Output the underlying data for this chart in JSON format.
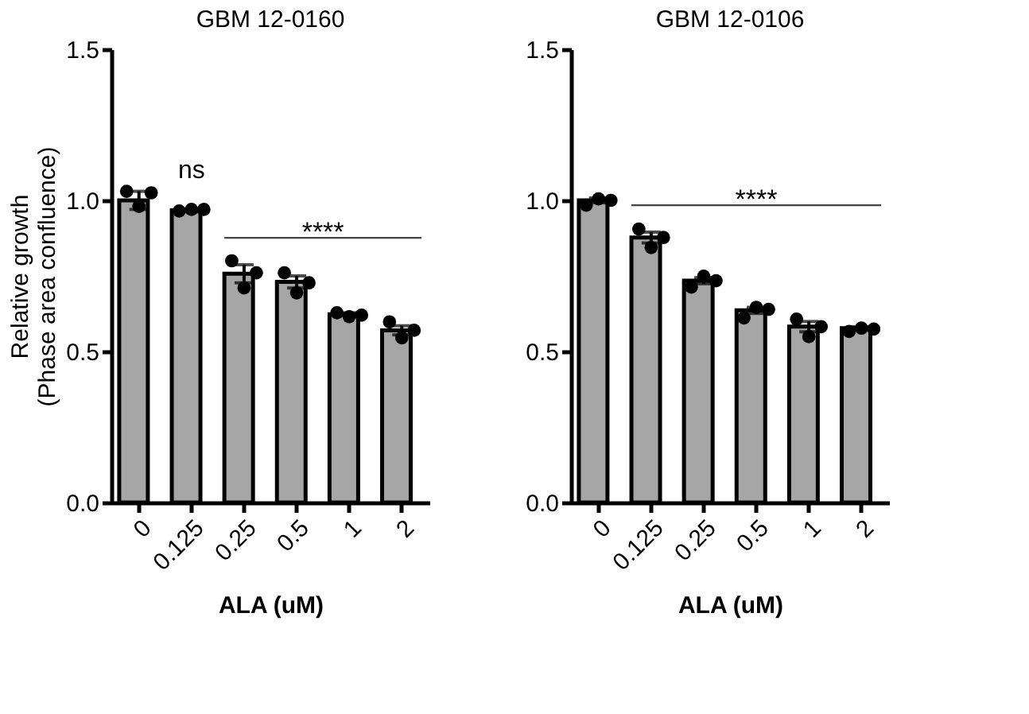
{
  "chart_data": [
    {
      "type": "bar",
      "title": "GBM 12-0160",
      "xlabel": "ALA (uM)",
      "ylabel": "Relative growth\n(Phase area confluence)",
      "categories": [
        "0",
        "0.125",
        "0.25",
        "0.5",
        "1",
        "2"
      ],
      "series": [
        {
          "color": "#a6a6a6",
          "values": [
            1.0,
            0.967,
            0.757,
            0.73,
            0.623,
            0.57
          ],
          "errors": [
            0.03,
            0.005,
            0.03,
            0.02,
            0.005,
            0.015
          ]
        },
        {
          "type": "scatter",
          "color": "#000000",
          "x": [
            "0",
            "0",
            "0",
            "0.125",
            "0.125",
            "0.125",
            "0.25",
            "0.25",
            "0.25",
            "0.5",
            "0.5",
            "0.5",
            "1",
            "1",
            "1",
            "2",
            "2",
            "2"
          ],
          "values": [
            1.03,
            0.98,
            1.025,
            0.965,
            0.97,
            0.97,
            0.8,
            0.71,
            0.76,
            0.76,
            0.694,
            0.727,
            0.628,
            0.615,
            0.62,
            0.598,
            0.545,
            0.57
          ]
        }
      ],
      "ylim": [
        0,
        1.5
      ],
      "yticks": [
        {
          "value": 0,
          "label": "0.0"
        },
        {
          "value": 0.5,
          "label": "0.5"
        },
        {
          "value": 1,
          "label": "1.0"
        },
        {
          "value": 1.5,
          "label": "1.5"
        }
      ],
      "grid": false,
      "annotations": [
        "ns",
        "****"
      ]
    },
    {
      "type": "bar",
      "title": "GBM 12-0106",
      "xlabel": "ALA (uM)",
      "categories": [
        "0",
        "0.125",
        "0.25",
        "0.5",
        "1",
        "2"
      ],
      "series": [
        {
          "color": "#a6a6a6",
          "values": [
            1.0,
            0.877,
            0.734,
            0.636,
            0.582,
            0.577
          ],
          "errors": [
            0.008,
            0.018,
            0.01,
            0.01,
            0.017,
            0.005
          ]
        },
        {
          "type": "scatter",
          "color": "#000000",
          "x": [
            "0",
            "0",
            "0",
            "0.125",
            "0.125",
            "0.125",
            "0.25",
            "0.25",
            "0.25",
            "0.5",
            "0.5",
            "0.5",
            "1",
            "1",
            "1",
            "2",
            "2",
            "2"
          ],
          "values": [
            0.984,
            1.005,
            1.0,
            0.905,
            0.844,
            0.877,
            0.713,
            0.749,
            0.734,
            0.611,
            0.646,
            0.639,
            0.607,
            0.549,
            0.582,
            0.566,
            0.577,
            0.574
          ]
        }
      ],
      "ylim": [
        0,
        1.5
      ],
      "yticks": [
        {
          "value": 0,
          "label": "0.0"
        },
        {
          "value": 0.5,
          "label": "0.5"
        },
        {
          "value": 1,
          "label": "1.0"
        },
        {
          "value": 1.5,
          "label": "1.5"
        }
      ],
      "grid": false,
      "annotations": [
        "****"
      ]
    }
  ]
}
